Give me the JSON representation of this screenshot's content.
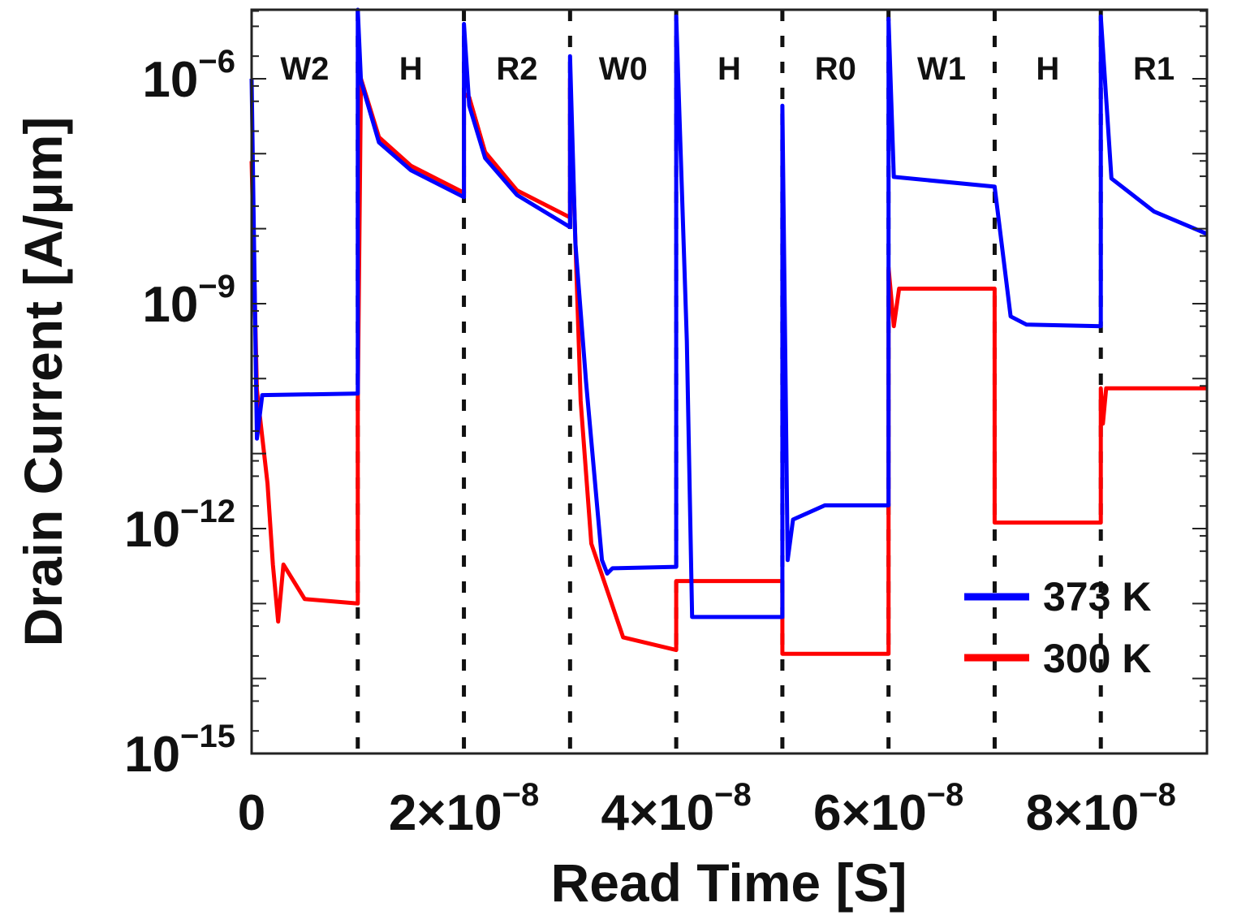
{
  "chart_data": {
    "type": "line",
    "title": "",
    "xlabel": "Read Time [S]",
    "ylabel": "Drain Current [A/μm]",
    "yscale": "log",
    "x_unit": "1e-8 s",
    "xlim": [
      0,
      9
    ],
    "ylim_log10": [
      -15,
      -5.08
    ],
    "x_ticks": [
      {
        "value": 0,
        "label": "0",
        "exp": ""
      },
      {
        "value": 2,
        "label": "2×10",
        "exp": "−8"
      },
      {
        "value": 4,
        "label": "4×10",
        "exp": "−8"
      },
      {
        "value": 6,
        "label": "6×10",
        "exp": "−8"
      },
      {
        "value": 8,
        "label": "8×10",
        "exp": "−8"
      }
    ],
    "y_ticks": [
      {
        "value": -6,
        "label": "10",
        "exp": "−6"
      },
      {
        "value": -9,
        "label": "10",
        "exp": "−9"
      },
      {
        "value": -12,
        "label": "10",
        "exp": "−12"
      },
      {
        "value": -15,
        "label": "10",
        "exp": "−15"
      }
    ],
    "phase_boundaries": [
      1,
      2,
      3,
      4,
      5,
      6,
      7,
      8
    ],
    "phases": [
      "W2",
      "H",
      "R2",
      "W0",
      "H",
      "R0",
      "W1",
      "H",
      "R1"
    ],
    "legend_position": "bottom-right",
    "series": [
      {
        "name": "373 K",
        "color": "#0000ff",
        "x": [
          0,
          0.05,
          0.1,
          0.98,
          1.0,
          1.0,
          1.03,
          1.2,
          1.5,
          2.0,
          2.0,
          2.05,
          2.2,
          2.5,
          3.0,
          3.0,
          3.05,
          3.15,
          3.3,
          3.35,
          3.4,
          4.0,
          4.0,
          4.1,
          4.15,
          5.0,
          5.0,
          5.05,
          5.1,
          5.4,
          6.0,
          6.0,
          6.05,
          7.0,
          7.15,
          7.3,
          8.0,
          8.0,
          8.1,
          8.5,
          9.0
        ],
        "log10_y": [
          -6.0,
          -10.8,
          -10.22,
          -10.2,
          -10.2,
          -5.08,
          -6.03,
          -6.85,
          -7.22,
          -7.58,
          -5.27,
          -6.36,
          -7.06,
          -7.55,
          -7.98,
          -5.7,
          -8.2,
          -10.04,
          -12.42,
          -12.6,
          -12.53,
          -12.51,
          -5.17,
          -9.5,
          -13.18,
          -13.18,
          -6.36,
          -12.42,
          -11.88,
          -11.69,
          -11.69,
          -5.2,
          -7.31,
          -7.44,
          -9.17,
          -9.28,
          -9.3,
          -5.17,
          -7.33,
          -7.77,
          -8.07
        ]
      },
      {
        "name": "300 K",
        "color": "#ff0000",
        "x": [
          0,
          0.05,
          0.15,
          0.2,
          0.25,
          0.3,
          0.5,
          1.0,
          1.0,
          1.03,
          1.2,
          1.5,
          2.0,
          2.0,
          2.05,
          2.2,
          2.5,
          3.0,
          3.0,
          3.1,
          3.2,
          3.5,
          4.0,
          4.0,
          5.0,
          5.0,
          6.0,
          6.0,
          6.05,
          6.1,
          7.0,
          7.0,
          8.0,
          8.0,
          8.02,
          8.05,
          9.0
        ],
        "log10_y": [
          -7.1,
          -10.15,
          -11.4,
          -12.48,
          -13.24,
          -12.48,
          -12.94,
          -13.0,
          -10.3,
          -6.0,
          -6.78,
          -7.16,
          -7.52,
          -6.2,
          -6.25,
          -6.98,
          -7.49,
          -7.85,
          -6.0,
          -10.3,
          -12.2,
          -13.45,
          -13.62,
          -12.7,
          -12.7,
          -13.67,
          -13.67,
          -8.52,
          -9.3,
          -8.8,
          -8.8,
          -11.92,
          -11.92,
          -10.13,
          -10.6,
          -10.13,
          -10.13
        ]
      }
    ]
  }
}
